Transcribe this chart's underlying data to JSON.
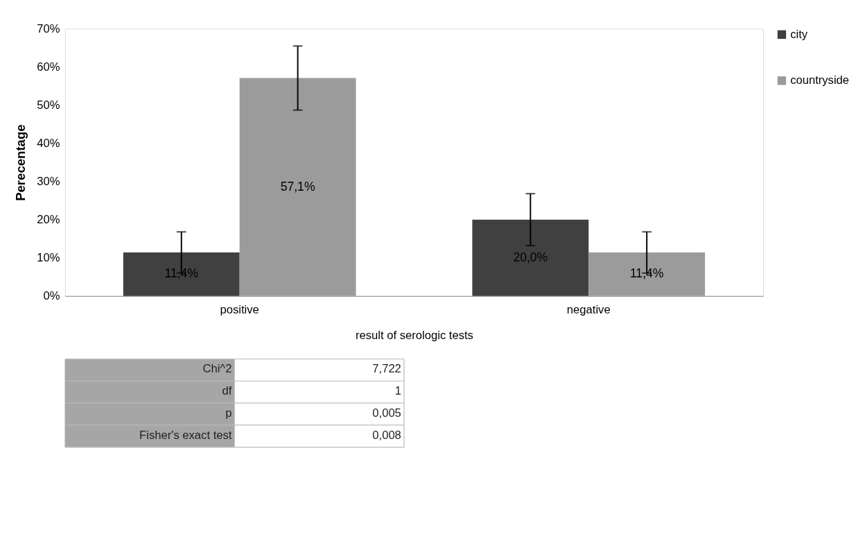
{
  "chart_data": {
    "type": "bar",
    "categories": [
      "positive",
      "negative"
    ],
    "series": [
      {
        "name": "city",
        "color": "#404040",
        "values": [
          11.4,
          20.0
        ],
        "errors": [
          5.4,
          6.8
        ],
        "value_labels": [
          "11,4%",
          "20,0%"
        ]
      },
      {
        "name": "countryside",
        "color": "#9b9b9b",
        "values": [
          57.1,
          11.4
        ],
        "errors": [
          8.4,
          5.4
        ],
        "value_labels": [
          "57,1%",
          "11,4%"
        ]
      }
    ],
    "xlabel": "result of serologic tests",
    "ylabel": "Perecentage",
    "ylim": [
      0,
      70
    ],
    "yticks": [
      {
        "value": 0,
        "label": "0%"
      },
      {
        "value": 10,
        "label": "10%"
      },
      {
        "value": 20,
        "label": "20%"
      },
      {
        "value": 30,
        "label": "30%"
      },
      {
        "value": 40,
        "label": "40%"
      },
      {
        "value": 50,
        "label": "50%"
      },
      {
        "value": 60,
        "label": "60%"
      },
      {
        "value": 70,
        "label": "70%"
      }
    ],
    "grid": false,
    "legend": "top right",
    "annotations": [
      "Chi^2",
      "7,722",
      "df",
      "1",
      "p",
      "0,005",
      "Fisher's exact test",
      "0,008"
    ]
  }
}
